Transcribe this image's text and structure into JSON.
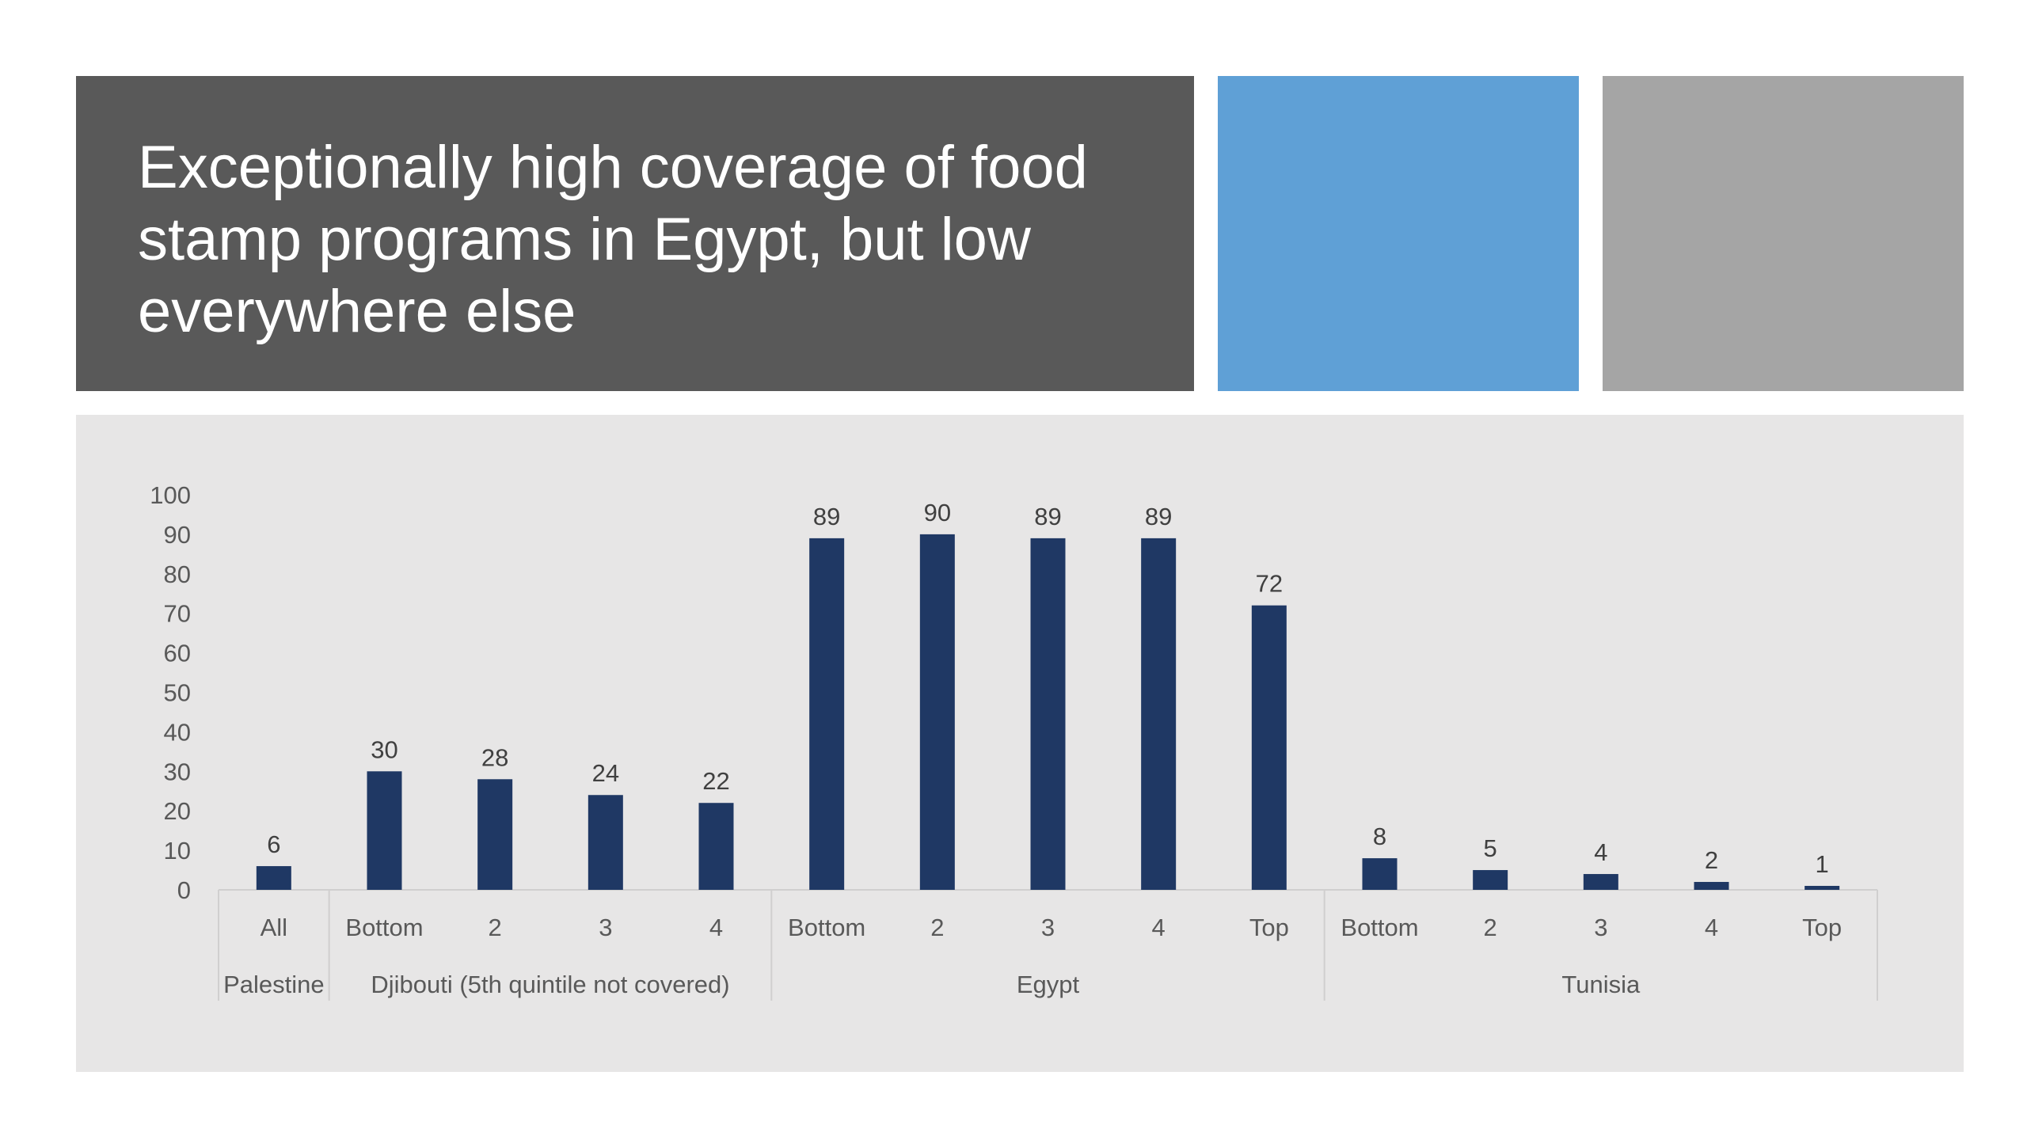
{
  "slide": {
    "title": "Exceptionally high coverage of food\nstamp programs in Egypt, but low\neverywhere else",
    "colors": {
      "title_background": "#595959",
      "accent_blue": "#5fa0d6",
      "accent_gray": "#a5a5a5",
      "panel_background": "#e7e6e6",
      "bar": "#1f3864"
    }
  },
  "chart_data": {
    "type": "bar",
    "title": "",
    "xlabel": "",
    "ylabel": "",
    "ylim": [
      0,
      100
    ],
    "yticks": [
      0,
      10,
      20,
      30,
      40,
      50,
      60,
      70,
      80,
      90,
      100
    ],
    "grid": false,
    "legend": "none",
    "categories": [
      "All",
      "Bottom",
      "2",
      "3",
      "4",
      "Bottom",
      "2",
      "3",
      "4",
      "Top",
      "Bottom",
      "2",
      "3",
      "4",
      "Top"
    ],
    "values": [
      6,
      30,
      28,
      24,
      22,
      89,
      90,
      89,
      89,
      72,
      8,
      5,
      4,
      2,
      1
    ],
    "data_labels": [
      "6",
      "30",
      "28",
      "24",
      "22",
      "89",
      "90",
      "89",
      "89",
      "72",
      "8",
      "5",
      "4",
      "2",
      "1"
    ],
    "groups": [
      {
        "label": "Palestine",
        "count": 1
      },
      {
        "label": "Djibouti (5th quintile not covered)",
        "count": 4
      },
      {
        "label": "Egypt",
        "count": 5
      },
      {
        "label": "Tunisia",
        "count": 5
      }
    ]
  }
}
